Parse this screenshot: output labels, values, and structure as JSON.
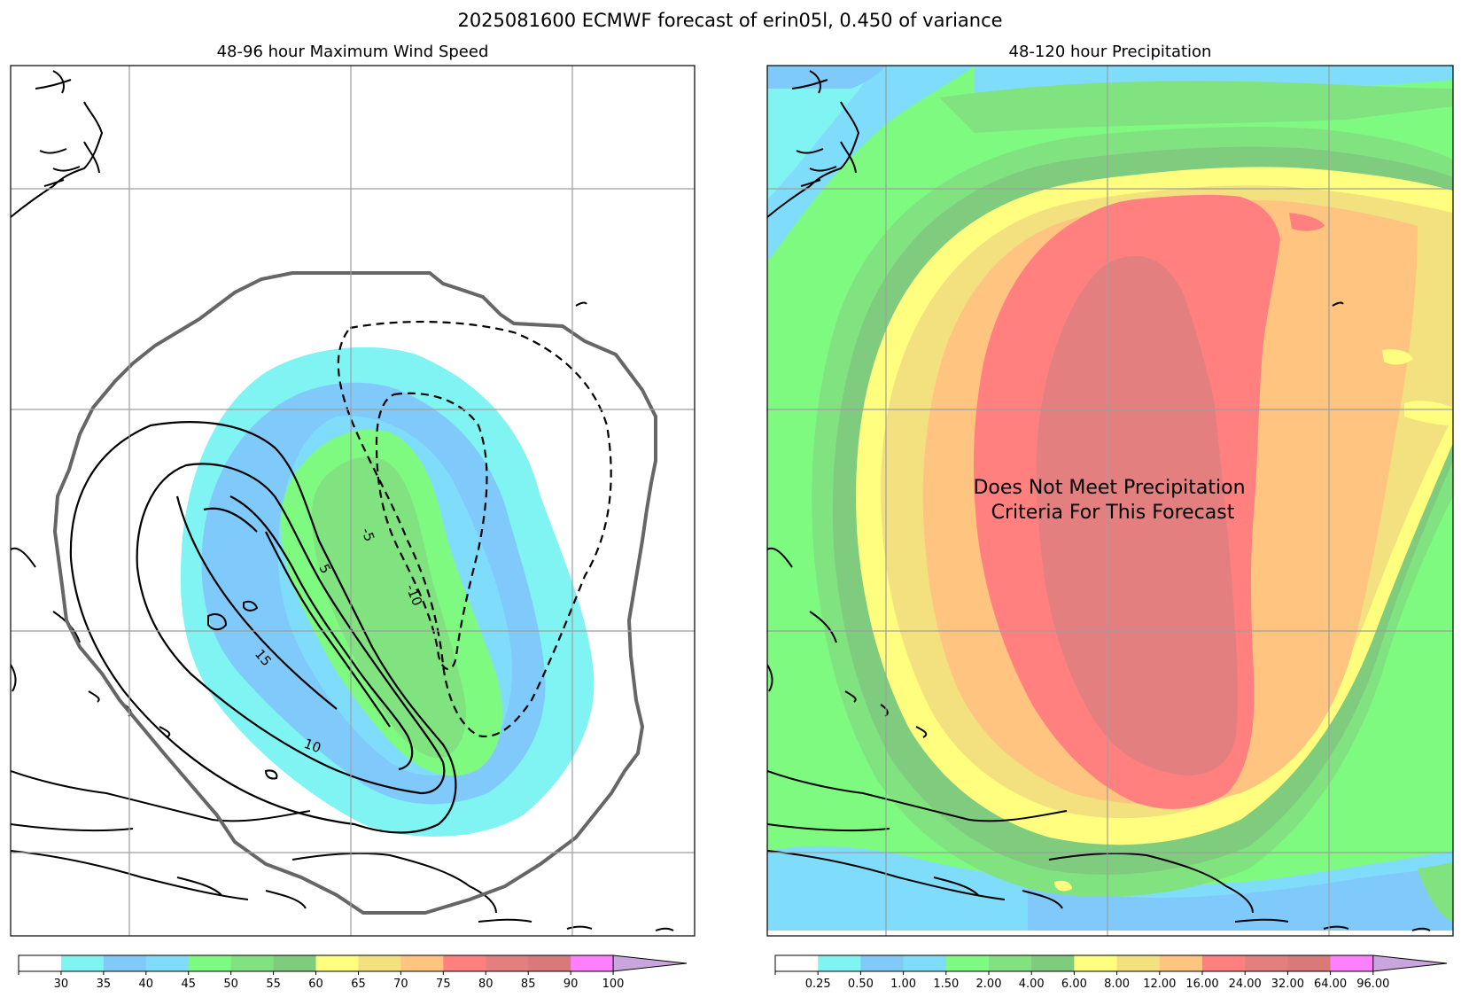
{
  "figure": {
    "title": "2025081600 ECMWF forecast of erin05l, 0.450 of variance"
  },
  "chart_data": [
    {
      "type": "heatmap",
      "title": "48-96 hour Maximum Wind Speed",
      "colorbar": {
        "levels": [
          30,
          35,
          40,
          45,
          50,
          55,
          60,
          65,
          70,
          75,
          80,
          85,
          90,
          100
        ],
        "tick_labels": [
          "30",
          "35",
          "40",
          "45",
          "50",
          "55",
          "60",
          "65",
          "70",
          "75",
          "80",
          "85",
          "90",
          "100"
        ],
        "colors": [
          "#ffffff",
          "#7ff4f2",
          "#7fcafb",
          "#80dcfb",
          "#7ffa80",
          "#80e380",
          "#7fcc7f",
          "#fffe7f",
          "#f3e07f",
          "#ffc47f",
          "#ff807f",
          "#e47f7f",
          "#d87a7a",
          "#ff80fe",
          "#c8a5dd"
        ],
        "extend": "max"
      },
      "contour_labels": [
        "5",
        "10",
        "15",
        "-5",
        "-10"
      ],
      "grid": true
    },
    {
      "type": "heatmap",
      "title": "48-120 hour Precipitation",
      "annotation": [
        "Does Not Meet Precipitation",
        "Criteria For This Forecast"
      ],
      "colorbar": {
        "levels": [
          0.25,
          0.5,
          1.0,
          1.5,
          2.0,
          4.0,
          6.0,
          8.0,
          12.0,
          16.0,
          24.0,
          32.0,
          64.0,
          96.0
        ],
        "tick_labels": [
          "0.25",
          "0.50",
          "1.00",
          "1.50",
          "2.00",
          "4.00",
          "6.00",
          "8.00",
          "12.00",
          "16.00",
          "24.00",
          "32.00",
          "64.00",
          "96.00"
        ],
        "colors": [
          "#ffffff",
          "#7ff4f2",
          "#7fcafb",
          "#80dcfb",
          "#7ffa80",
          "#80e380",
          "#7fcc7f",
          "#fffe7f",
          "#f3e07f",
          "#ffc47f",
          "#ff807f",
          "#e47f7f",
          "#d87a7a",
          "#ff80fe",
          "#c8a5dd"
        ],
        "extend": "max"
      },
      "grid": true
    }
  ]
}
